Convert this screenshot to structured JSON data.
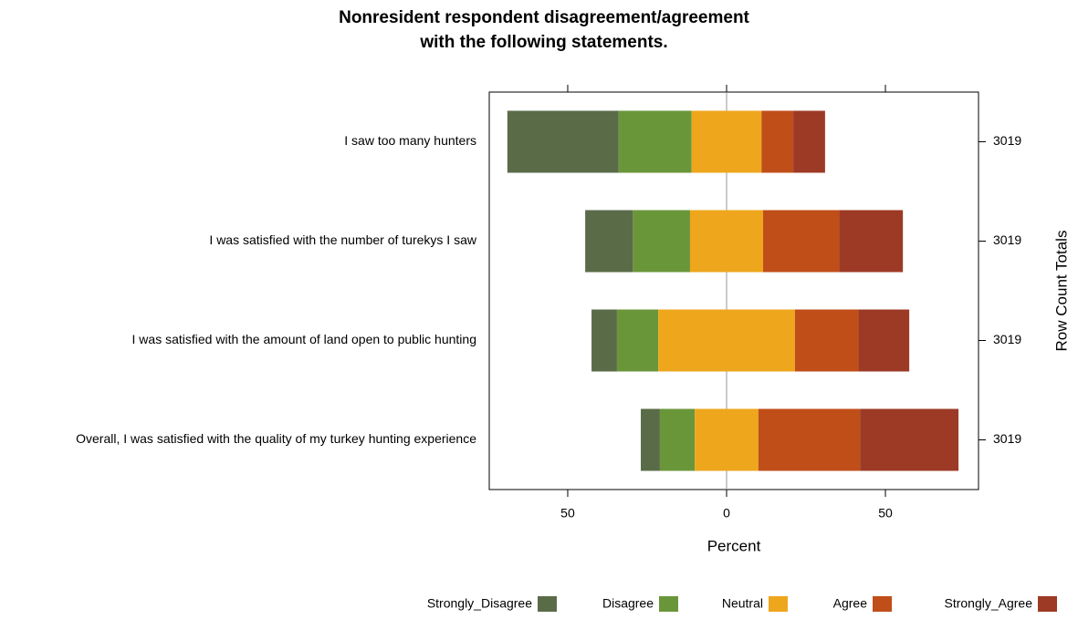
{
  "chart_data": {
    "type": "diverging_bar",
    "title": [
      "Nonresident respondent disagreement/agreement",
      "with the following statements."
    ],
    "xlabel": "Percent",
    "y2label": "Row Count Totals",
    "categories": [
      "I saw too many hunters",
      "I was satisfied with the number of turekys I saw",
      "I was satisfied with the amount of land open to public hunting",
      "Overall, I was satisfied with the quality of my turkey hunting experience"
    ],
    "row_totals": [
      3019,
      3019,
      3019,
      3019
    ],
    "neutral_series": 2,
    "series": [
      {
        "name": "Strongly_Disagree",
        "color": "#5a6b48",
        "values": [
          35,
          15,
          8,
          6
        ]
      },
      {
        "name": "Disagree",
        "color": "#6a963a",
        "values": [
          23,
          18,
          13,
          11
        ]
      },
      {
        "name": "Neutral",
        "color": "#eea61c",
        "values": [
          22,
          23,
          43,
          20
        ]
      },
      {
        "name": "Agree",
        "color": "#c04e19",
        "values": [
          10,
          24,
          20,
          32
        ]
      },
      {
        "name": "Strongly_Agree",
        "color": "#9c3a25",
        "values": [
          10,
          20,
          16,
          31
        ]
      }
    ],
    "xlim": [
      -74.7,
      79.3
    ],
    "xticks": [
      {
        "value": -50,
        "label": "50"
      },
      0,
      50
    ]
  }
}
